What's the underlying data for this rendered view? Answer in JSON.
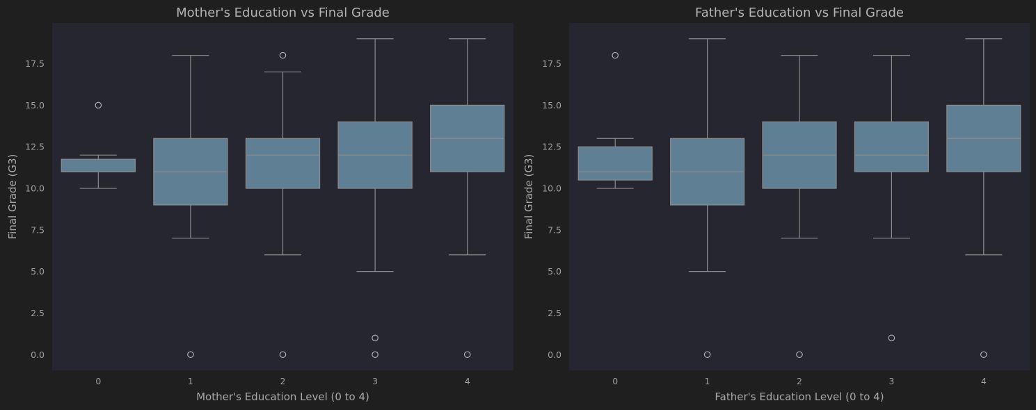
{
  "colors": {
    "figure_bg": "#1f1f1f",
    "axes_bg": "#252630",
    "box_fill": "#5f7f94",
    "line": "#8c8c8c",
    "text": "#a8a8a8"
  },
  "chart_data": [
    {
      "type": "box",
      "title": "Mother's Education vs Final Grade",
      "xlabel": "Mother's Education Level (0 to 4)",
      "ylabel": "Final Grade (G3)",
      "categories": [
        "0",
        "1",
        "2",
        "3",
        "4"
      ],
      "ylim": [
        -0.95,
        19.95
      ],
      "yticks": [
        0.0,
        2.5,
        5.0,
        7.5,
        10.0,
        12.5,
        15.0,
        17.5
      ],
      "ytick_labels": [
        "0.0",
        "2.5",
        "5.0",
        "7.5",
        "10.0",
        "12.5",
        "15.0",
        "17.5"
      ],
      "grid": false,
      "boxes": [
        {
          "category": "0",
          "whisker_low": 10,
          "q1": 11,
          "median": 11,
          "q3": 11.75,
          "whisker_high": 12,
          "outliers": [
            15
          ]
        },
        {
          "category": "1",
          "whisker_low": 7,
          "q1": 9,
          "median": 11,
          "q3": 13,
          "whisker_high": 18,
          "outliers": [
            0
          ]
        },
        {
          "category": "2",
          "whisker_low": 6,
          "q1": 10,
          "median": 12,
          "q3": 13,
          "whisker_high": 17,
          "outliers": [
            0,
            18
          ]
        },
        {
          "category": "3",
          "whisker_low": 5,
          "q1": 10,
          "median": 12,
          "q3": 14,
          "whisker_high": 19,
          "outliers": [
            0,
            1
          ]
        },
        {
          "category": "4",
          "whisker_low": 6,
          "q1": 11,
          "median": 13,
          "q3": 15,
          "whisker_high": 19,
          "outliers": [
            0
          ]
        }
      ]
    },
    {
      "type": "box",
      "title": "Father's Education vs Final Grade",
      "xlabel": "Father's Education Level (0 to 4)",
      "ylabel": "Final Grade (G3)",
      "categories": [
        "0",
        "1",
        "2",
        "3",
        "4"
      ],
      "ylim": [
        -0.95,
        19.95
      ],
      "yticks": [
        0.0,
        2.5,
        5.0,
        7.5,
        10.0,
        12.5,
        15.0,
        17.5
      ],
      "ytick_labels": [
        "0.0",
        "2.5",
        "5.0",
        "7.5",
        "10.0",
        "12.5",
        "15.0",
        "17.5"
      ],
      "grid": false,
      "boxes": [
        {
          "category": "0",
          "whisker_low": 10,
          "q1": 10.5,
          "median": 11,
          "q3": 12.5,
          "whisker_high": 13,
          "outliers": [
            18
          ]
        },
        {
          "category": "1",
          "whisker_low": 5,
          "q1": 9,
          "median": 11,
          "q3": 13,
          "whisker_high": 19,
          "outliers": [
            0
          ]
        },
        {
          "category": "2",
          "whisker_low": 7,
          "q1": 10,
          "median": 12,
          "q3": 14,
          "whisker_high": 18,
          "outliers": [
            0
          ]
        },
        {
          "category": "3",
          "whisker_low": 7,
          "q1": 11,
          "median": 12,
          "q3": 14,
          "whisker_high": 18,
          "outliers": [
            1
          ]
        },
        {
          "category": "4",
          "whisker_low": 6,
          "q1": 11,
          "median": 13,
          "q3": 15,
          "whisker_high": 19,
          "outliers": [
            0
          ]
        }
      ]
    }
  ]
}
